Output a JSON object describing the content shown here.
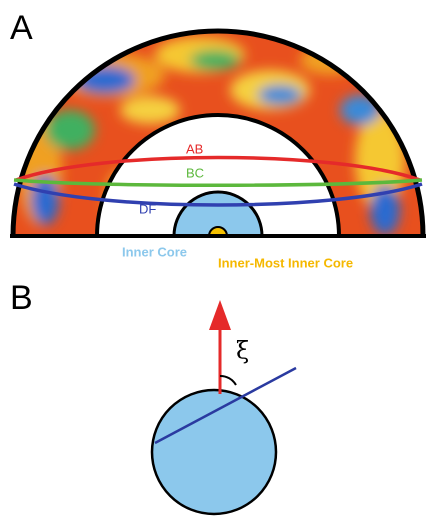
{
  "panel_a": {
    "label": "A",
    "rays": [
      "AB",
      "BC",
      "DF"
    ],
    "inner_core": "Inner Core",
    "inner_most_core": "Inner-Most Inner Core"
  },
  "panel_b": {
    "label": "B",
    "angle": "ξ"
  }
}
